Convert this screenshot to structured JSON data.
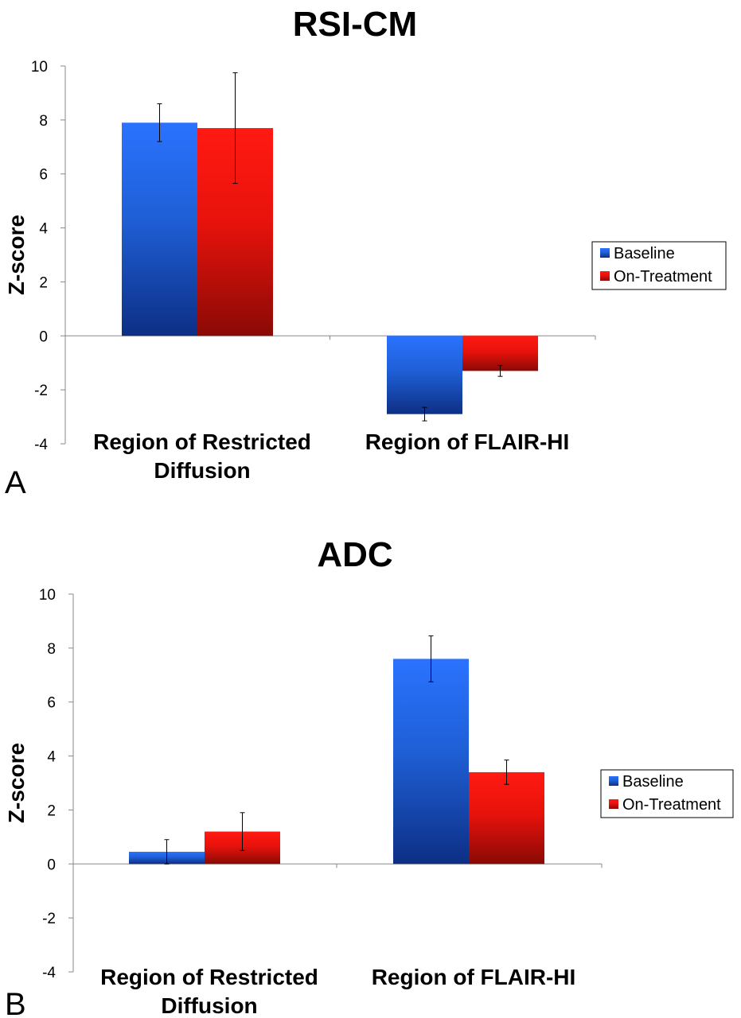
{
  "chart_data": [
    {
      "type": "bar",
      "panel_label": "A",
      "title": "RSI-CM",
      "ylabel": "Z-score",
      "ylim": [
        -4,
        10
      ],
      "yticks": [
        "-4",
        "-2",
        "0",
        "2",
        "4",
        "6",
        "8",
        "10"
      ],
      "categories": [
        [
          "Region of Restricted",
          "Diffusion"
        ],
        [
          "Region of FLAIR-HI"
        ]
      ],
      "series": [
        {
          "name": "Baseline",
          "color": "#1f5fd6",
          "values": [
            7.9,
            -2.9
          ],
          "errors": [
            0.7,
            0.25
          ]
        },
        {
          "name": "On-Treatment",
          "color": "#e8120c",
          "values": [
            7.7,
            -1.3
          ],
          "errors": [
            2.05,
            0.2
          ]
        }
      ],
      "legend": "right",
      "grid": false
    },
    {
      "type": "bar",
      "panel_label": "B",
      "title": "ADC",
      "ylabel": "Z-score",
      "ylim": [
        -4,
        10
      ],
      "yticks": [
        "-4",
        "-2",
        "0",
        "2",
        "4",
        "6",
        "8",
        "10"
      ],
      "categories": [
        [
          "Region of Restricted",
          "Diffusion"
        ],
        [
          "Region of FLAIR-HI"
        ]
      ],
      "series": [
        {
          "name": "Baseline",
          "color": "#1f5fd6",
          "values": [
            0.45,
            7.6
          ],
          "errors": [
            0.45,
            0.85
          ]
        },
        {
          "name": "On-Treatment",
          "color": "#e8120c",
          "values": [
            1.2,
            3.4
          ],
          "errors": [
            0.7,
            0.45
          ]
        }
      ],
      "legend": "right",
      "grid": false
    }
  ]
}
